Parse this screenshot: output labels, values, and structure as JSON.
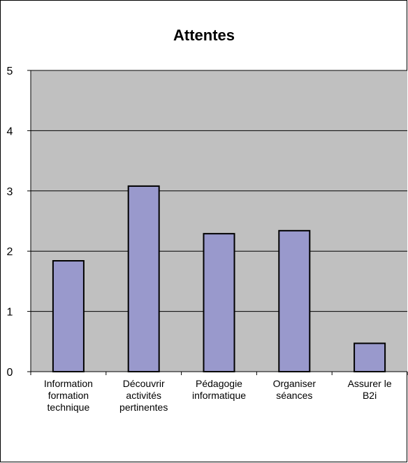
{
  "chart_data": {
    "type": "bar",
    "title": "Attentes",
    "xlabel": "",
    "ylabel": "",
    "categories": [
      [
        "Information",
        "formation",
        "technique"
      ],
      [
        "Découvrir",
        "activités",
        "pertinentes"
      ],
      [
        "Pédagogie",
        "informatique"
      ],
      [
        "Organiser",
        "séances"
      ],
      [
        "Assurer le",
        "B2i"
      ]
    ],
    "values": [
      1.84,
      3.08,
      2.29,
      2.34,
      0.47
    ],
    "ylim": [
      0,
      5
    ],
    "yticks": [
      0,
      1,
      2,
      3,
      4,
      5
    ],
    "grid": true,
    "colors": {
      "plot_background": "#c0c0c0",
      "bar_fill": "#9999cc",
      "bar_stroke": "#000000",
      "gridline": "#000000"
    }
  }
}
